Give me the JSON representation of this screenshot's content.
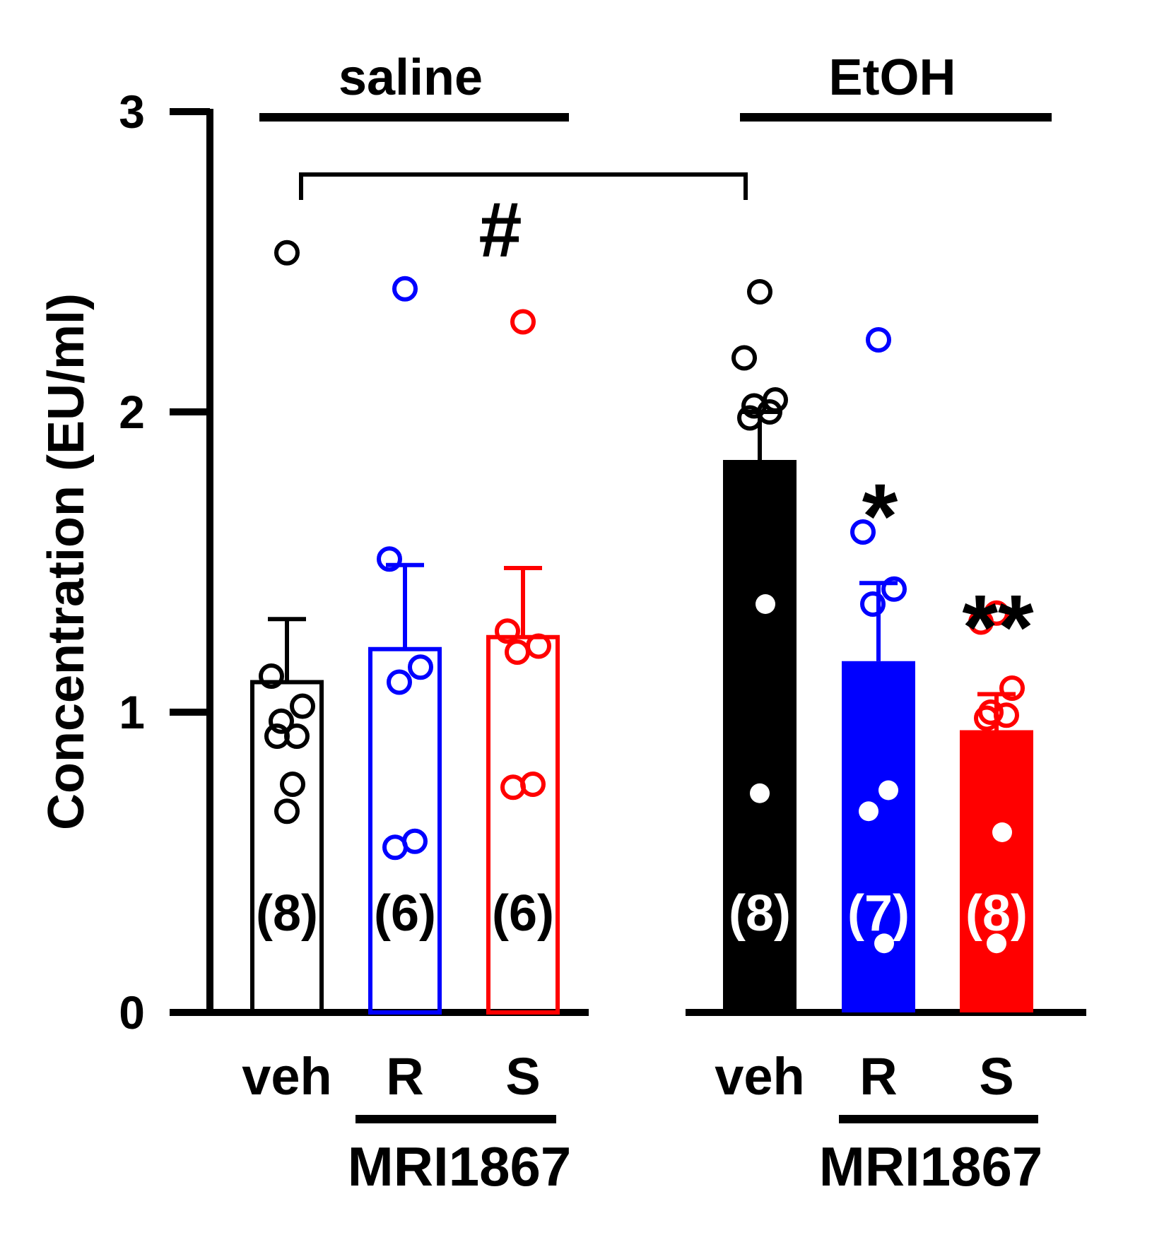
{
  "chart_data": {
    "type": "bar",
    "ylabel": "Concentration (EU/ml)",
    "ylim": [
      0,
      3
    ],
    "yticks": [
      "0",
      "1",
      "2",
      "3"
    ],
    "groups": [
      {
        "label": "saline",
        "treatment_label": "MRI1867",
        "bars": [
          {
            "category": "veh",
            "color": "#000000",
            "filled": false,
            "mean": 1.1,
            "error": 0.21,
            "n_label": "(8)",
            "points": [
              2.53,
              1.12,
              1.02,
              0.97,
              0.92,
              0.92,
              0.76,
              0.67
            ]
          },
          {
            "category": "R",
            "color": "#0000ff",
            "filled": false,
            "mean": 1.21,
            "error": 0.28,
            "n_label": "(6)",
            "points": [
              2.41,
              1.51,
              1.15,
              1.1,
              0.57,
              0.55
            ]
          },
          {
            "category": "S",
            "color": "#ff0000",
            "filled": false,
            "mean": 1.25,
            "error": 0.23,
            "n_label": "(6)",
            "points": [
              2.3,
              1.27,
              1.22,
              1.2,
              0.76,
              0.75
            ]
          }
        ]
      },
      {
        "label": "EtOH",
        "treatment_label": "MRI1867",
        "bars": [
          {
            "category": "veh",
            "color": "#000000",
            "filled": true,
            "mean": 1.84,
            "error": 0.16,
            "n_label": "(8)",
            "points": [
              2.4,
              2.18,
              2.04,
              2.02,
              2.0,
              1.98,
              1.36,
              0.73
            ]
          },
          {
            "category": "R",
            "color": "#0000ff",
            "filled": true,
            "mean": 1.17,
            "error": 0.26,
            "n_label": "(7)",
            "points": [
              2.24,
              1.6,
              1.41,
              1.36,
              0.74,
              0.67,
              0.23
            ],
            "annotation": "*"
          },
          {
            "category": "S",
            "color": "#ff0000",
            "filled": true,
            "mean": 0.94,
            "error": 0.12,
            "n_label": "(8)",
            "points": [
              1.33,
              1.3,
              1.08,
              1.0,
              0.99,
              0.98,
              0.6,
              0.23
            ],
            "annotation": "**"
          }
        ]
      }
    ],
    "comparison": {
      "from": "saline veh",
      "to": "EtOH veh",
      "symbol": "#"
    }
  }
}
